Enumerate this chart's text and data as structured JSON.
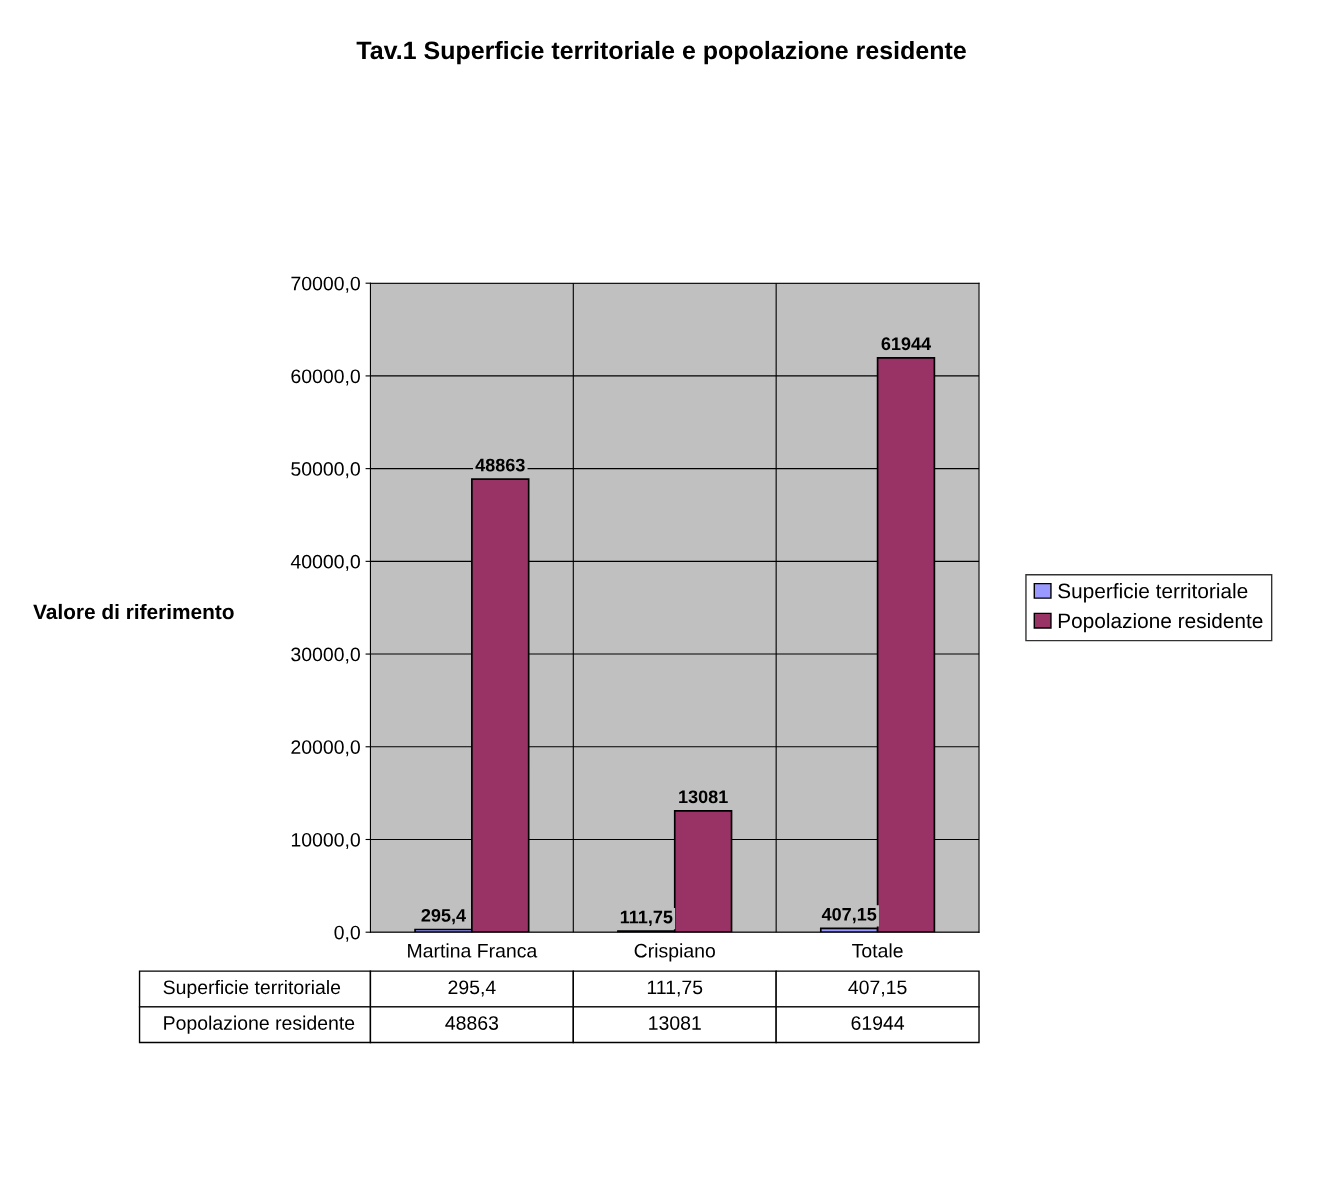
{
  "chart_data": {
    "type": "bar",
    "title": "Tav.1 Superficie territoriale e popolazione residente",
    "ylabel": "Valore di riferimento",
    "categories": [
      "Martina Franca",
      "Crispiano",
      "Totale"
    ],
    "series": [
      {
        "name": "Superficie territoriale",
        "color": "#9999ff",
        "values": [
          295.4,
          111.75,
          407.15
        ],
        "value_labels": [
          "295,4",
          "111,75",
          "407,15"
        ]
      },
      {
        "name": "Popolazione residente",
        "color": "#993366",
        "values": [
          48863,
          13081,
          61944
        ],
        "value_labels": [
          "48863",
          "13081",
          "61944"
        ]
      }
    ],
    "ylim": [
      0,
      70000
    ],
    "yticks": [
      {
        "value": 0,
        "label": "0,0"
      },
      {
        "value": 10000,
        "label": "10000,0"
      },
      {
        "value": 20000,
        "label": "20000,0"
      },
      {
        "value": 30000,
        "label": "30000,0"
      },
      {
        "value": 40000,
        "label": "40000,0"
      },
      {
        "value": 50000,
        "label": "50000,0"
      },
      {
        "value": 60000,
        "label": "60000,0"
      },
      {
        "value": 70000,
        "label": "70000,0"
      }
    ],
    "grid": "y",
    "legend": "right"
  }
}
